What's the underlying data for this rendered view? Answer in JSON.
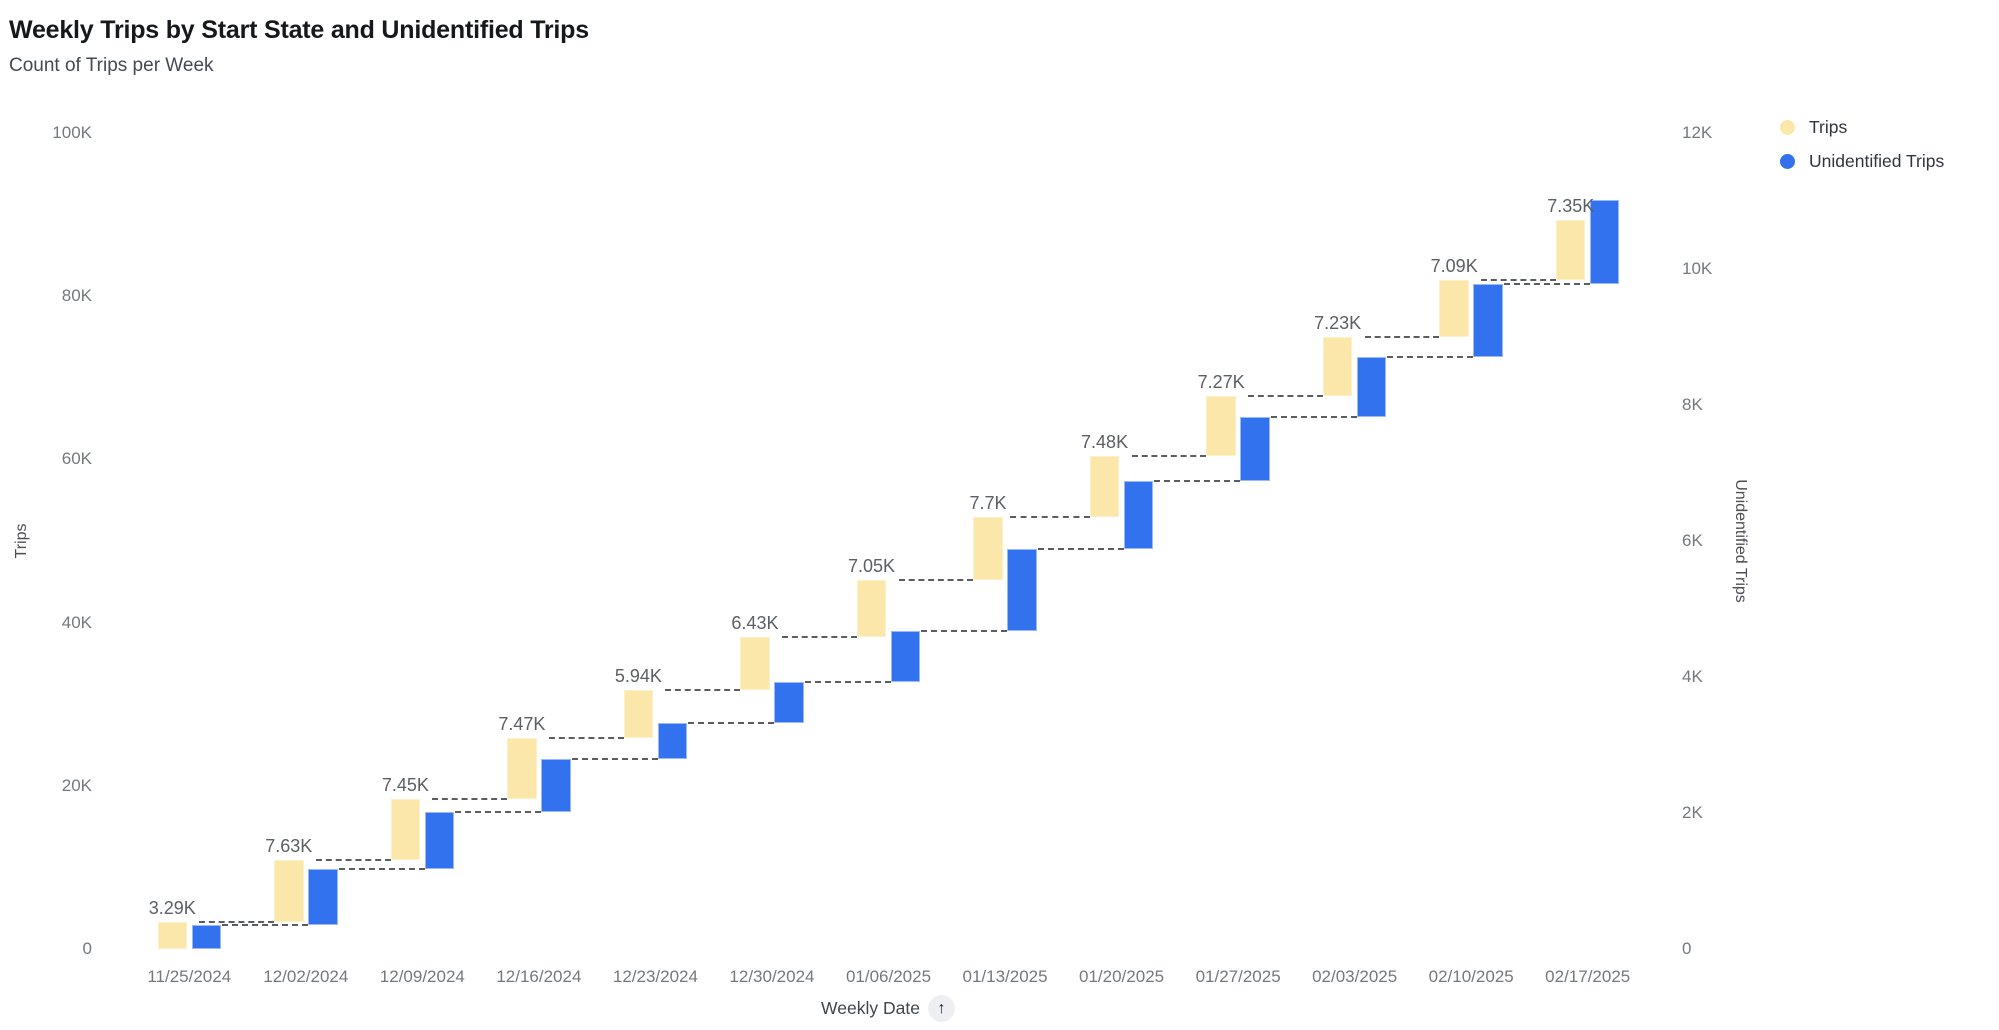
{
  "header": {
    "title": "Weekly Trips by Start State and Unidentified Trips",
    "subtitle": "Count of Trips per Week"
  },
  "x_axis_control": {
    "label": "Weekly Date",
    "sort_icon": "arrow-up",
    "arrow_glyph": "↑"
  },
  "chart_data": {
    "type": "bar",
    "subtype": "waterfall-cumulative-dual-axis",
    "title": "Weekly Trips by Start State and Unidentified Trips",
    "subtitle": "Count of Trips per Week",
    "grid": false,
    "legend_position": "top-right",
    "categories": [
      "11/25/2024",
      "12/02/2024",
      "12/09/2024",
      "12/16/2024",
      "12/23/2024",
      "12/30/2024",
      "01/06/2025",
      "01/13/2025",
      "01/20/2025",
      "01/27/2025",
      "02/03/2025",
      "02/10/2025",
      "02/17/2025"
    ],
    "series": [
      {
        "name": "Trips",
        "axis": "left",
        "color": "#fce7ab",
        "values": [
          3290,
          7630,
          7450,
          7470,
          5940,
          6430,
          7050,
          7700,
          7480,
          7270,
          7230,
          7090,
          7350
        ],
        "labels": [
          "3.29K",
          "7.63K",
          "7.45K",
          "7.47K",
          "5.94K",
          "6.43K",
          "7.05K",
          "7.7K",
          "7.48K",
          "7.27K",
          "7.23K",
          "7.09K",
          "7.35K"
        ]
      },
      {
        "name": "Unidentified Trips",
        "axis": "right",
        "color": "#3372ee",
        "values": [
          350,
          830,
          840,
          780,
          530,
          590,
          760,
          1200,
          1000,
          950,
          880,
          1070,
          1230
        ],
        "labels": []
      }
    ],
    "left_axis": {
      "label": "Trips",
      "range": [
        0,
        100000
      ],
      "ticks": [
        {
          "label": "100K",
          "value": 100000
        },
        {
          "label": "80K",
          "value": 80000
        },
        {
          "label": "60K",
          "value": 60000
        },
        {
          "label": "40K",
          "value": 40000
        },
        {
          "label": "20K",
          "value": 20000
        },
        {
          "label": "0",
          "value": 0
        }
      ]
    },
    "right_axis": {
      "label": "Unidentified Trips",
      "range": [
        0,
        12000
      ],
      "ticks": [
        {
          "label": "12K",
          "value": 12000
        },
        {
          "label": "10K",
          "value": 10000
        },
        {
          "label": "8K",
          "value": 8000
        },
        {
          "label": "6K",
          "value": 6000
        },
        {
          "label": "4K",
          "value": 4000
        },
        {
          "label": "2K",
          "value": 2000
        },
        {
          "label": "0",
          "value": 0
        }
      ]
    },
    "x_axis": {
      "label": "Weekly Date"
    }
  }
}
